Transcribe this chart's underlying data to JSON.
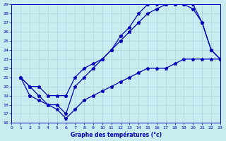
{
  "xlabel": "Graphe des températures (°c)",
  "bg_color": "#c8ecf0",
  "grid_color": "#b0d8e0",
  "line_color": "#0000bb",
  "xlim": [
    0,
    23
  ],
  "ylim": [
    16,
    29
  ],
  "xticks": [
    0,
    1,
    2,
    3,
    4,
    5,
    6,
    7,
    8,
    9,
    10,
    11,
    12,
    13,
    14,
    15,
    16,
    17,
    18,
    19,
    20,
    21,
    22,
    23
  ],
  "yticks": [
    16,
    17,
    18,
    19,
    20,
    21,
    22,
    23,
    24,
    25,
    26,
    27,
    28,
    29
  ],
  "line1_x": [
    1,
    2,
    3,
    4,
    5,
    6,
    7,
    8,
    9,
    10,
    11,
    12,
    13,
    14,
    15,
    16,
    17,
    18,
    19,
    20,
    21,
    22,
    23
  ],
  "line1_y": [
    21,
    20,
    20,
    19,
    19,
    19,
    21,
    22,
    22.5,
    23,
    24,
    25,
    26,
    27,
    28,
    28.5,
    29,
    29,
    29,
    29,
    27,
    24,
    23
  ],
  "line2_x": [
    1,
    2,
    3,
    4,
    5,
    6,
    7,
    8,
    9,
    10,
    11,
    12,
    13,
    14,
    15,
    16,
    17,
    18,
    19,
    20,
    21,
    22,
    23
  ],
  "line2_y": [
    21,
    20,
    19,
    18,
    18,
    17,
    20,
    21,
    22,
    23,
    24,
    25.5,
    26.5,
    28,
    29,
    29,
    29,
    29,
    29,
    28.5,
    27,
    24,
    23
  ],
  "line3_x": [
    1,
    2,
    3,
    4,
    5,
    6,
    7,
    8,
    9,
    10,
    11,
    12,
    13,
    14,
    15,
    16,
    17,
    18,
    19,
    20,
    21,
    22,
    23
  ],
  "line3_y": [
    21,
    19,
    18.5,
    18,
    17.5,
    16.5,
    17.5,
    18.5,
    19,
    19.5,
    20,
    20.5,
    21,
    21.5,
    22,
    22,
    22,
    22.5,
    23,
    23,
    23,
    23,
    23
  ]
}
